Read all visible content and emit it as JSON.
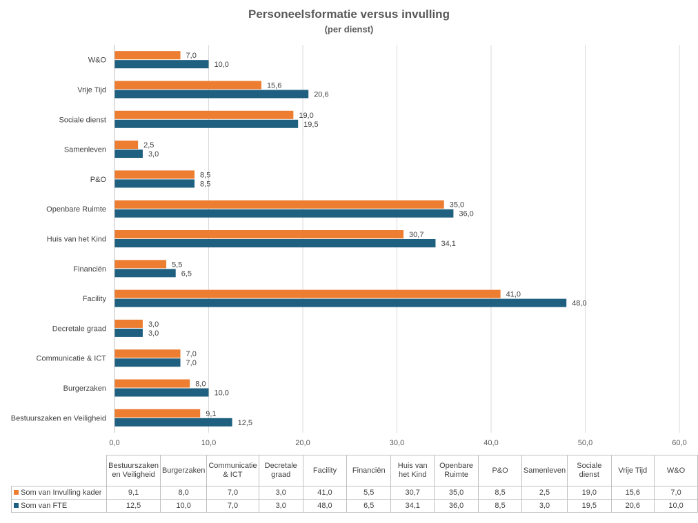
{
  "chart_data": {
    "type": "bar",
    "orientation": "horizontal",
    "title": "Personeelsformatie versus invulling",
    "subtitle": "(per dienst)",
    "categories": [
      "Bestuurszaken en Veiligheid",
      "Burgerzaken",
      "Communicatie & ICT",
      "Decretale graad",
      "Facility",
      "Financiën",
      "Huis van het Kind",
      "Openbare Ruimte",
      "P&O",
      "Samenleven",
      "Sociale dienst",
      "Vrije Tijd",
      "W&O"
    ],
    "table_headers": [
      "Bestuurszaken en Veiligheid",
      "Burgerzaken",
      "Communicatie & ICT",
      "Decretale graad",
      "Facility",
      "Financiën",
      "Huis van het Kind",
      "Openbare Ruimte",
      "P&O",
      "Samenleven",
      "Sociale dienst",
      "Vrije Tijd",
      "W&O"
    ],
    "series": [
      {
        "name": "Som van Invulling kader",
        "color": "#ED7D31",
        "values": [
          9.1,
          8.0,
          7.0,
          3.0,
          41.0,
          5.5,
          30.7,
          35.0,
          8.5,
          2.5,
          19.0,
          15.6,
          7.0
        ],
        "labels": [
          "9,1",
          "8,0",
          "7,0",
          "3,0",
          "41,0",
          "5,5",
          "30,7",
          "35,0",
          "8,5",
          "2,5",
          "19,0",
          "15,6",
          "7,0"
        ]
      },
      {
        "name": "Som van FTE",
        "color": "#1F5F7F",
        "values": [
          12.5,
          10.0,
          7.0,
          3.0,
          48.0,
          6.5,
          34.1,
          36.0,
          8.5,
          3.0,
          19.5,
          20.6,
          10.0
        ],
        "labels": [
          "12,5",
          "10,0",
          "7,0",
          "3,0",
          "48,0",
          "6,5",
          "34,1",
          "36,0",
          "8,5",
          "3,0",
          "19,5",
          "20,6",
          "10,0"
        ]
      }
    ],
    "xlim": [
      0,
      60
    ],
    "x_ticks": [
      "0,0",
      "10,0",
      "20,0",
      "30,0",
      "40,0",
      "50,0",
      "60,0"
    ],
    "grid": true,
    "legend": "data-table"
  }
}
